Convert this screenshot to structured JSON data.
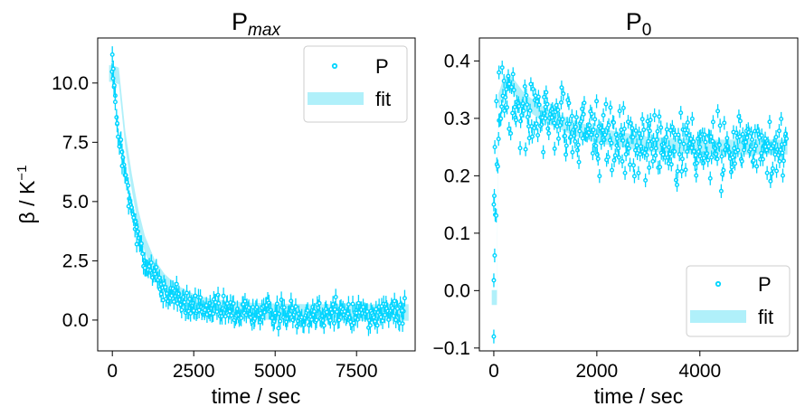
{
  "colors": {
    "data": "#00d5ff",
    "fit": "#b0f0fa",
    "axis": "#000000",
    "legend_border": "#cccccc"
  },
  "chart_data": [
    {
      "type": "scatter",
      "title": "Pmax",
      "title_base": "P",
      "title_sub": "max",
      "xlabel": "time / sec",
      "ylabel": "β / K⁻¹",
      "ylabel_main": "β / K",
      "ylabel_sup": "−1",
      "xlim": [
        -450,
        9300
      ],
      "ylim": [
        -1.3,
        11.9
      ],
      "xticks": [
        0,
        2500,
        5000,
        7500
      ],
      "xtick_labels": [
        "0",
        "2500",
        "5000",
        "7500"
      ],
      "yticks": [
        0.0,
        2.5,
        5.0,
        7.5,
        10.0
      ],
      "ytick_labels": [
        "0.0",
        "2.5",
        "5.0",
        "7.5",
        "10.0"
      ],
      "legend": {
        "position": "upper right",
        "entries": [
          "P",
          "fit"
        ]
      },
      "series": [
        {
          "name": "P",
          "kind": "points_with_errorbars",
          "model": {
            "start": 0,
            "end": 9000,
            "n": 300,
            "step": 30,
            "peak": 10.3,
            "decay_tau": 700,
            "baseline": 0.3,
            "noise": 0.3,
            "err": 0.35
          },
          "points": [
            [
              0,
              11.2
            ],
            [
              30,
              10.6
            ],
            [
              60,
              9.9
            ],
            [
              90,
              9.2
            ],
            [
              150,
              8.3
            ],
            [
              300,
              6.5
            ],
            [
              500,
              4.8
            ],
            [
              750,
              3.2
            ],
            [
              1000,
              2.2
            ],
            [
              1500,
              1.1
            ],
            [
              2000,
              0.7
            ],
            [
              2500,
              0.4
            ],
            [
              3000,
              0.3
            ],
            [
              5000,
              0.3
            ],
            [
              7500,
              0.3
            ],
            [
              8900,
              0.4
            ]
          ]
        },
        {
          "name": "fit",
          "kind": "band",
          "points": [
            [
              -100,
              10.4
            ],
            [
              0,
              10.4
            ],
            [
              200,
              10.3
            ],
            [
              400,
              7.6
            ],
            [
              600,
              5.8
            ],
            [
              800,
              4.3
            ],
            [
              1000,
              3.2
            ],
            [
              1300,
              2.2
            ],
            [
              1600,
              1.6
            ],
            [
              2000,
              1.1
            ],
            [
              2500,
              0.75
            ],
            [
              3000,
              0.55
            ],
            [
              4000,
              0.4
            ],
            [
              5000,
              0.35
            ],
            [
              6000,
              0.32
            ],
            [
              7000,
              0.32
            ],
            [
              8000,
              0.32
            ],
            [
              9100,
              0.32
            ]
          ],
          "half_width": 0.35
        }
      ]
    },
    {
      "type": "scatter",
      "title": "P0",
      "title_base": "P",
      "title_sub": "0",
      "xlabel": "time / sec",
      "xlim": [
        -280,
        5900
      ],
      "ylim": [
        -0.105,
        0.44
      ],
      "xticks": [
        0,
        2000,
        4000
      ],
      "xtick_labels": [
        "0",
        "2000",
        "4000"
      ],
      "yticks": [
        -0.1,
        0.0,
        0.1,
        0.2,
        0.3,
        0.4
      ],
      "ytick_labels": [
        "−0.1",
        "0.0",
        "0.1",
        "0.2",
        "0.3",
        "0.4"
      ],
      "legend": {
        "position": "lower right",
        "entries": [
          "P",
          "fit"
        ]
      },
      "series": [
        {
          "name": "P",
          "kind": "points_with_errorbars",
          "model": {
            "start": 0,
            "end": 5700,
            "n": 380,
            "step": 15,
            "rise_tau": 70,
            "peak": 0.37,
            "decay_tau": 1200,
            "baseline": 0.245,
            "noise": 0.03,
            "err": 0.012
          },
          "points": [
            [
              0,
              -0.08
            ],
            [
              0,
              0.15
            ],
            [
              10,
              0.165
            ],
            [
              20,
              0.25
            ],
            [
              50,
              0.33
            ],
            [
              100,
              0.38
            ],
            [
              300,
              0.36
            ],
            [
              1000,
              0.3
            ],
            [
              2000,
              0.27
            ],
            [
              3000,
              0.26
            ],
            [
              4000,
              0.25
            ],
            [
              5600,
              0.24
            ]
          ]
        },
        {
          "name": "fit",
          "kind": "band",
          "points": [
            [
              -40,
              -0.012
            ],
            [
              60,
              -0.012
            ],
            [
              90,
              0.33
            ],
            [
              200,
              0.36
            ],
            [
              350,
              0.36
            ],
            [
              600,
              0.33
            ],
            [
              1000,
              0.305
            ],
            [
              1500,
              0.285
            ],
            [
              2000,
              0.27
            ],
            [
              3000,
              0.255
            ],
            [
              4000,
              0.25
            ],
            [
              5000,
              0.25
            ],
            [
              5700,
              0.25
            ]
          ],
          "half_width": 0.013
        }
      ]
    }
  ]
}
